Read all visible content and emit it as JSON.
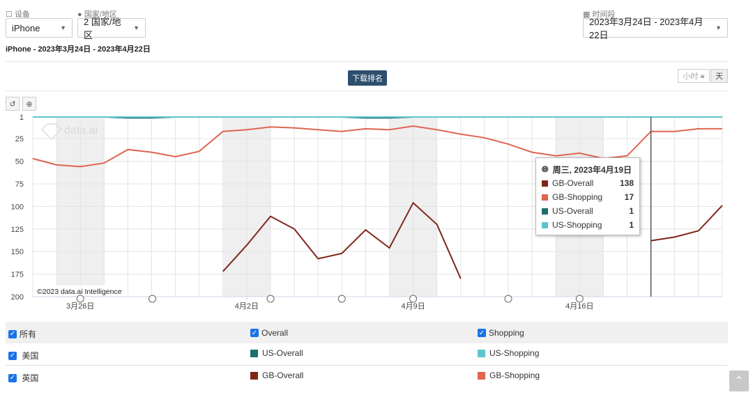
{
  "filters": {
    "device_label": "设备",
    "device_value": "iPhone",
    "region_label": "国家/地区",
    "region_value": "2 国家/地区",
    "period_label": "时间段",
    "period_value": "2023年3月24日 - 2023年4月22日"
  },
  "subtitle": "iPhone - 2023年3月24日 - 2023年4月22日",
  "toolbar": {
    "download_rank": "下载排名",
    "hour_btn": "小时",
    "day_btn": "天"
  },
  "watermark": "data.ai",
  "copyright": "©2023 data.ai Intelligence",
  "tooltip": {
    "date": "周三, 2023年4月19日",
    "rows": [
      {
        "name": "GB-Overall",
        "value": "138",
        "color": "#7f2619"
      },
      {
        "name": "GB-Shopping",
        "value": "17",
        "color": "#e06450"
      },
      {
        "name": "US-Overall",
        "value": "1",
        "color": "#1f6e6e"
      },
      {
        "name": "US-Shopping",
        "value": "1",
        "color": "#5cc6cc"
      }
    ]
  },
  "legend": {
    "all": "所有",
    "overall": "Overall",
    "shopping": "Shopping",
    "us": "美国",
    "gb": "英国",
    "us_overall": "US-Overall",
    "us_shopping": "US-Shopping",
    "gb_overall": "GB-Overall",
    "gb_shopping": "GB-Shopping"
  },
  "colors": {
    "gb_overall": "#7f2619",
    "gb_shopping": "#e06450",
    "us_overall": "#1f6e6e",
    "us_shopping": "#5cc6cc",
    "checkbox": "#1a73e8"
  },
  "chart_data": {
    "type": "line",
    "x": [
      "3月24日",
      "3月25日",
      "3月26日",
      "3月27日",
      "3月28日",
      "3月29日",
      "3月30日",
      "3月31日",
      "4月1日",
      "4月2日",
      "4月3日",
      "4月4日",
      "4月5日",
      "4月6日",
      "4月7日",
      "4月8日",
      "4月9日",
      "4月10日",
      "4月11日",
      "4月12日",
      "4月13日",
      "4月14日",
      "4月15日",
      "4月16日",
      "4月17日",
      "4月18日",
      "4月19日",
      "4月20日",
      "4月21日",
      "4月22日"
    ],
    "x_tick_labels": [
      "3月26日",
      "4月2日",
      "4月9日",
      "4月16日"
    ],
    "y_ticks": [
      1,
      25,
      50,
      75,
      100,
      125,
      150,
      175,
      200
    ],
    "ylim": [
      1,
      200
    ],
    "y_reversed": true,
    "grid": true,
    "highlighted_x": "4月19日",
    "series": [
      {
        "name": "GB-Overall",
        "color": "#7f2619",
        "values": [
          null,
          null,
          null,
          null,
          null,
          null,
          null,
          null,
          172,
          143,
          111,
          125,
          158,
          152,
          126,
          146,
          96,
          120,
          180,
          null,
          null,
          null,
          null,
          null,
          null,
          null,
          138,
          134,
          127,
          99
        ]
      },
      {
        "name": "GB-Shopping",
        "color": "#e06450",
        "values": [
          47,
          54,
          56,
          52,
          37,
          40,
          45,
          39,
          17,
          15,
          12,
          13,
          15,
          17,
          14,
          15,
          11,
          15,
          20,
          24,
          31,
          40,
          44,
          41,
          47,
          44,
          17,
          17,
          14,
          14
        ]
      },
      {
        "name": "US-Overall",
        "color": "#1f6e6e",
        "values": [
          1,
          1,
          1,
          1,
          2,
          2,
          1,
          1,
          1,
          1,
          1,
          1,
          1,
          1,
          2,
          2,
          1,
          1,
          1,
          1,
          1,
          1,
          1,
          1,
          1,
          1,
          1,
          1,
          1,
          1
        ]
      },
      {
        "name": "US-Shopping",
        "color": "#5cc6cc",
        "values": [
          1,
          1,
          1,
          1,
          1,
          1,
          1,
          1,
          1,
          1,
          1,
          1,
          1,
          1,
          1,
          1,
          1,
          1,
          1,
          1,
          1,
          1,
          1,
          1,
          1,
          1,
          1,
          1,
          1,
          1
        ]
      }
    ]
  }
}
